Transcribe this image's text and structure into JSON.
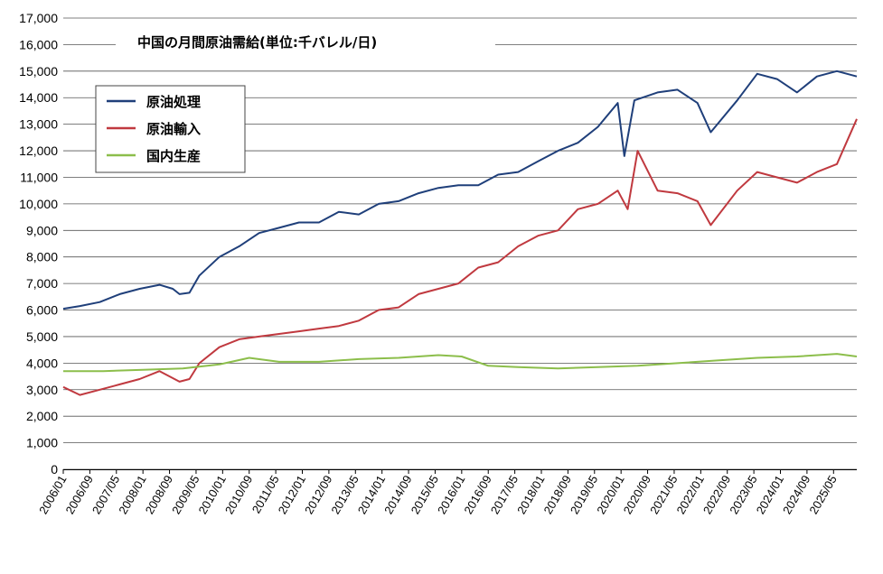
{
  "chart_data": {
    "type": "line",
    "title": "中国の月間原油需給(単位:千バレル/日)",
    "ylim": [
      0,
      17000
    ],
    "yticks": [
      "0",
      "1,000",
      "2,000",
      "3,000",
      "4,000",
      "5,000",
      "6,000",
      "7,000",
      "8,000",
      "9,000",
      "10,000",
      "11,000",
      "12,000",
      "13,000",
      "14,000",
      "15,000",
      "16,000",
      "17,000"
    ],
    "x_start": "2006/01",
    "x_end": "2025/12",
    "xtick_labels": [
      "2006/01",
      "2006/09",
      "2007/05",
      "2008/01",
      "2008/09",
      "2009/05",
      "2010/01",
      "2010/09",
      "2011/05",
      "2012/01",
      "2012/09",
      "2013/05",
      "2014/01",
      "2014/09",
      "2015/05",
      "2016/01",
      "2016/09",
      "2017/05",
      "2018/01",
      "2018/09",
      "2019/05",
      "2020/01",
      "2020/09",
      "2021/05",
      "2022/01",
      "2022/09",
      "2023/05",
      "2024/01",
      "2024/09",
      "2025/05"
    ],
    "legend_position": "upper-left",
    "grid": true,
    "series": [
      {
        "name": "原油処理",
        "color": "#1f3f7a",
        "points": [
          [
            "2006/01",
            6050
          ],
          [
            "2006/06",
            6150
          ],
          [
            "2006/12",
            6300
          ],
          [
            "2007/06",
            6600
          ],
          [
            "2007/12",
            6800
          ],
          [
            "2008/06",
            6950
          ],
          [
            "2008/10",
            6800
          ],
          [
            "2008/12",
            6600
          ],
          [
            "2009/03",
            6650
          ],
          [
            "2009/06",
            7300
          ],
          [
            "2009/12",
            8000
          ],
          [
            "2010/06",
            8400
          ],
          [
            "2010/12",
            8900
          ],
          [
            "2011/06",
            9100
          ],
          [
            "2011/12",
            9300
          ],
          [
            "2012/06",
            9300
          ],
          [
            "2012/12",
            9700
          ],
          [
            "2013/06",
            9600
          ],
          [
            "2013/12",
            10000
          ],
          [
            "2014/06",
            10100
          ],
          [
            "2014/12",
            10400
          ],
          [
            "2015/06",
            10600
          ],
          [
            "2015/12",
            10700
          ],
          [
            "2016/06",
            10700
          ],
          [
            "2016/12",
            11100
          ],
          [
            "2017/06",
            11200
          ],
          [
            "2017/12",
            11600
          ],
          [
            "2018/06",
            12000
          ],
          [
            "2018/12",
            12300
          ],
          [
            "2019/06",
            12900
          ],
          [
            "2019/12",
            13800
          ],
          [
            "2020/02",
            11800
          ],
          [
            "2020/05",
            13900
          ],
          [
            "2020/12",
            14200
          ],
          [
            "2021/06",
            14300
          ],
          [
            "2021/12",
            13800
          ],
          [
            "2022/04",
            12700
          ],
          [
            "2022/12",
            13900
          ],
          [
            "2023/06",
            14900
          ],
          [
            "2023/12",
            14700
          ],
          [
            "2024/06",
            14200
          ],
          [
            "2024/12",
            14800
          ],
          [
            "2025/06",
            15000
          ],
          [
            "2025/12",
            14800
          ]
        ]
      },
      {
        "name": "原油輸入",
        "color": "#c0393f",
        "points": [
          [
            "2006/01",
            3100
          ],
          [
            "2006/06",
            2800
          ],
          [
            "2006/12",
            3000
          ],
          [
            "2007/06",
            3200
          ],
          [
            "2007/12",
            3400
          ],
          [
            "2008/06",
            3700
          ],
          [
            "2008/12",
            3300
          ],
          [
            "2009/03",
            3400
          ],
          [
            "2009/06",
            4000
          ],
          [
            "2009/12",
            4600
          ],
          [
            "2010/06",
            4900
          ],
          [
            "2010/12",
            5000
          ],
          [
            "2011/06",
            5100
          ],
          [
            "2011/12",
            5200
          ],
          [
            "2012/06",
            5300
          ],
          [
            "2012/12",
            5400
          ],
          [
            "2013/06",
            5600
          ],
          [
            "2013/12",
            6000
          ],
          [
            "2014/06",
            6100
          ],
          [
            "2014/12",
            6600
          ],
          [
            "2015/06",
            6800
          ],
          [
            "2015/12",
            7000
          ],
          [
            "2016/06",
            7600
          ],
          [
            "2016/12",
            7800
          ],
          [
            "2017/06",
            8400
          ],
          [
            "2017/12",
            8800
          ],
          [
            "2018/06",
            9000
          ],
          [
            "2018/12",
            9800
          ],
          [
            "2019/06",
            10000
          ],
          [
            "2019/12",
            10500
          ],
          [
            "2020/03",
            9800
          ],
          [
            "2020/06",
            12000
          ],
          [
            "2020/12",
            10500
          ],
          [
            "2021/06",
            10400
          ],
          [
            "2021/12",
            10100
          ],
          [
            "2022/04",
            9200
          ],
          [
            "2022/12",
            10500
          ],
          [
            "2023/06",
            11200
          ],
          [
            "2023/12",
            11000
          ],
          [
            "2024/06",
            10800
          ],
          [
            "2024/12",
            11200
          ],
          [
            "2025/06",
            11500
          ],
          [
            "2025/12",
            13200
          ]
        ]
      },
      {
        "name": "国内生産",
        "color": "#8cbe4b",
        "points": [
          [
            "2006/01",
            3700
          ],
          [
            "2007/01",
            3700
          ],
          [
            "2008/01",
            3750
          ],
          [
            "2009/01",
            3800
          ],
          [
            "2009/12",
            3950
          ],
          [
            "2010/09",
            4200
          ],
          [
            "2011/06",
            4050
          ],
          [
            "2012/06",
            4050
          ],
          [
            "2013/06",
            4150
          ],
          [
            "2014/06",
            4200
          ],
          [
            "2015/06",
            4300
          ],
          [
            "2016/01",
            4250
          ],
          [
            "2016/09",
            3900
          ],
          [
            "2017/06",
            3850
          ],
          [
            "2018/06",
            3800
          ],
          [
            "2019/06",
            3850
          ],
          [
            "2020/06",
            3900
          ],
          [
            "2021/06",
            4000
          ],
          [
            "2022/06",
            4100
          ],
          [
            "2023/06",
            4200
          ],
          [
            "2024/06",
            4250
          ],
          [
            "2025/06",
            4350
          ],
          [
            "2025/12",
            4250
          ]
        ]
      }
    ]
  }
}
